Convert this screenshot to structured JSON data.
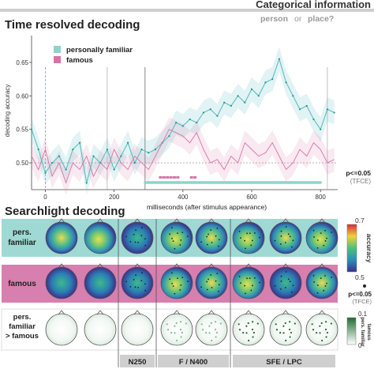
{
  "header": {
    "title": "Categorical information",
    "subtitle_person": "person",
    "subtitle_or": "or",
    "subtitle_place": "place?"
  },
  "chart_data": {
    "type": "line",
    "title": "Time resolved decoding",
    "xlabel": "milliseconds (after stimulus appearance)",
    "ylabel": "decoding accuracy",
    "xlim": [
      -40,
      850
    ],
    "ylim": [
      0.46,
      0.69
    ],
    "xticks": [
      0,
      200,
      400,
      600,
      800
    ],
    "yticks": [
      0.5,
      0.55,
      0.6,
      0.65
    ],
    "ytick_labels": [
      "0.50",
      "0.55",
      "0.60",
      "0.65"
    ],
    "legend_position": "top-left",
    "series": [
      {
        "name": "personally familiar",
        "color": "#5bbfc0",
        "x": [
          -40,
          -20,
          0,
          20,
          40,
          60,
          80,
          100,
          120,
          140,
          160,
          180,
          200,
          220,
          240,
          260,
          280,
          300,
          320,
          340,
          360,
          380,
          400,
          420,
          440,
          460,
          480,
          500,
          520,
          540,
          560,
          580,
          600,
          620,
          640,
          660,
          680,
          700,
          720,
          740,
          760,
          780,
          800,
          820,
          840
        ],
        "y": [
          0.55,
          0.52,
          0.485,
          0.5,
          0.51,
          0.49,
          0.52,
          0.53,
          0.47,
          0.51,
          0.5,
          0.52,
          0.49,
          0.51,
          0.53,
          0.5,
          0.52,
          0.515,
          0.52,
          0.53,
          0.54,
          0.56,
          0.555,
          0.565,
          0.56,
          0.575,
          0.58,
          0.57,
          0.59,
          0.585,
          0.6,
          0.59,
          0.61,
          0.6,
          0.62,
          0.625,
          0.655,
          0.62,
          0.6,
          0.58,
          0.585,
          0.565,
          0.55,
          0.58,
          0.575
        ]
      },
      {
        "name": "famous",
        "color": "#d874a6",
        "x": [
          -40,
          -20,
          0,
          20,
          40,
          60,
          80,
          100,
          120,
          140,
          160,
          180,
          200,
          220,
          240,
          260,
          280,
          300,
          320,
          340,
          360,
          380,
          400,
          420,
          440,
          460,
          480,
          500,
          520,
          540,
          560,
          580,
          600,
          620,
          640,
          660,
          680,
          700,
          720,
          740,
          760,
          780,
          800,
          820,
          840
        ],
        "y": [
          0.51,
          0.49,
          0.52,
          0.48,
          0.5,
          0.47,
          0.5,
          0.49,
          0.51,
          0.48,
          0.5,
          0.49,
          0.52,
          0.5,
          0.49,
          0.51,
          0.5,
          0.49,
          0.51,
          0.53,
          0.55,
          0.545,
          0.54,
          0.53,
          0.545,
          0.52,
          0.5,
          0.505,
          0.49,
          0.51,
          0.5,
          0.53,
          0.52,
          0.51,
          0.515,
          0.53,
          0.51,
          0.49,
          0.5,
          0.52,
          0.51,
          0.53,
          0.52,
          0.5,
          0.505
        ]
      }
    ],
    "significance": {
      "label": "p<=0.05",
      "sublabel": "(TFCE)",
      "familiar_bar": [
        290,
        800
      ],
      "famous_marks": [
        335,
        345,
        355,
        365,
        375,
        385,
        425,
        435
      ]
    }
  },
  "searchlight": {
    "title": "Searchlight decoding",
    "rows": [
      {
        "label_line1": "pers.",
        "label_line2": "familiar",
        "label_line3": "",
        "bg": "#9fd9d3"
      },
      {
        "label_line1": "famous",
        "label_line2": "",
        "label_line3": "",
        "bg": "#d77fae"
      },
      {
        "label_line1": "pers.",
        "label_line2": "familiar",
        "label_line3": "> famous",
        "bg": "#ffffff"
      }
    ],
    "windows": [
      "N250",
      "F / N400",
      "SFE / LPC"
    ],
    "accuracy_scale": {
      "max": "0.7",
      "min": "0.5",
      "label": "accuracy"
    },
    "significance_label": "p<=0.05",
    "significance_sublabel": "(TFCE)",
    "diff_scale": {
      "max": "0.1",
      "min": "0",
      "label_line1": "pers. familiar",
      "label_line2": "famous"
    }
  }
}
